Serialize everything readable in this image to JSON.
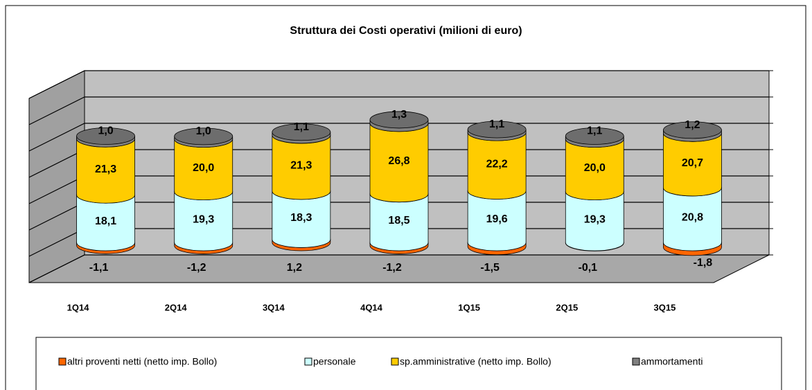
{
  "chart_data": {
    "type": "stacked-cylinder",
    "title": "Struttura dei Costi operativi (milioni di euro)",
    "categories": [
      "1Q14",
      "2Q14",
      "3Q14",
      "4Q14",
      "1Q15",
      "2Q15",
      "3Q15"
    ],
    "ylim": [
      -10,
      60
    ],
    "yticks": [
      -10,
      0,
      10,
      20,
      30,
      40,
      50,
      60
    ],
    "grid": true,
    "legend": "bottom",
    "series": [
      {
        "name": "altri proventi netti (netto imp. Bollo)",
        "color": "#ff6600",
        "values": [
          -1.1,
          -1.2,
          1.2,
          -1.2,
          -1.5,
          -0.1,
          -1.8
        ],
        "value_labels": [
          "-1,1",
          "-1,2",
          "1,2",
          "-1,2",
          "-1,5",
          "-0,1",
          "-1,8"
        ]
      },
      {
        "name": "personale",
        "color": "#ccffff",
        "values": [
          18.1,
          19.3,
          18.3,
          18.5,
          19.6,
          19.3,
          20.8
        ],
        "value_labels": [
          "18,1",
          "19,3",
          "18,3",
          "18,5",
          "19,6",
          "19,3",
          "20,8"
        ]
      },
      {
        "name": "sp.amministrative (netto imp. Bollo)",
        "color": "#ffcc00",
        "values": [
          21.3,
          20.0,
          21.3,
          26.8,
          22.2,
          20.0,
          20.7
        ],
        "value_labels": [
          "21,3",
          "20,0",
          "21,3",
          "26,8",
          "22,2",
          "20,0",
          "20,7"
        ]
      },
      {
        "name": "ammortamenti",
        "color": "#808080",
        "values": [
          1.0,
          1.0,
          1.1,
          1.3,
          1.1,
          1.1,
          1.2
        ],
        "value_labels": [
          "1,0",
          "1,0",
          "1,1",
          "1,3",
          "1,1",
          "1,1",
          "1,2"
        ]
      }
    ]
  }
}
